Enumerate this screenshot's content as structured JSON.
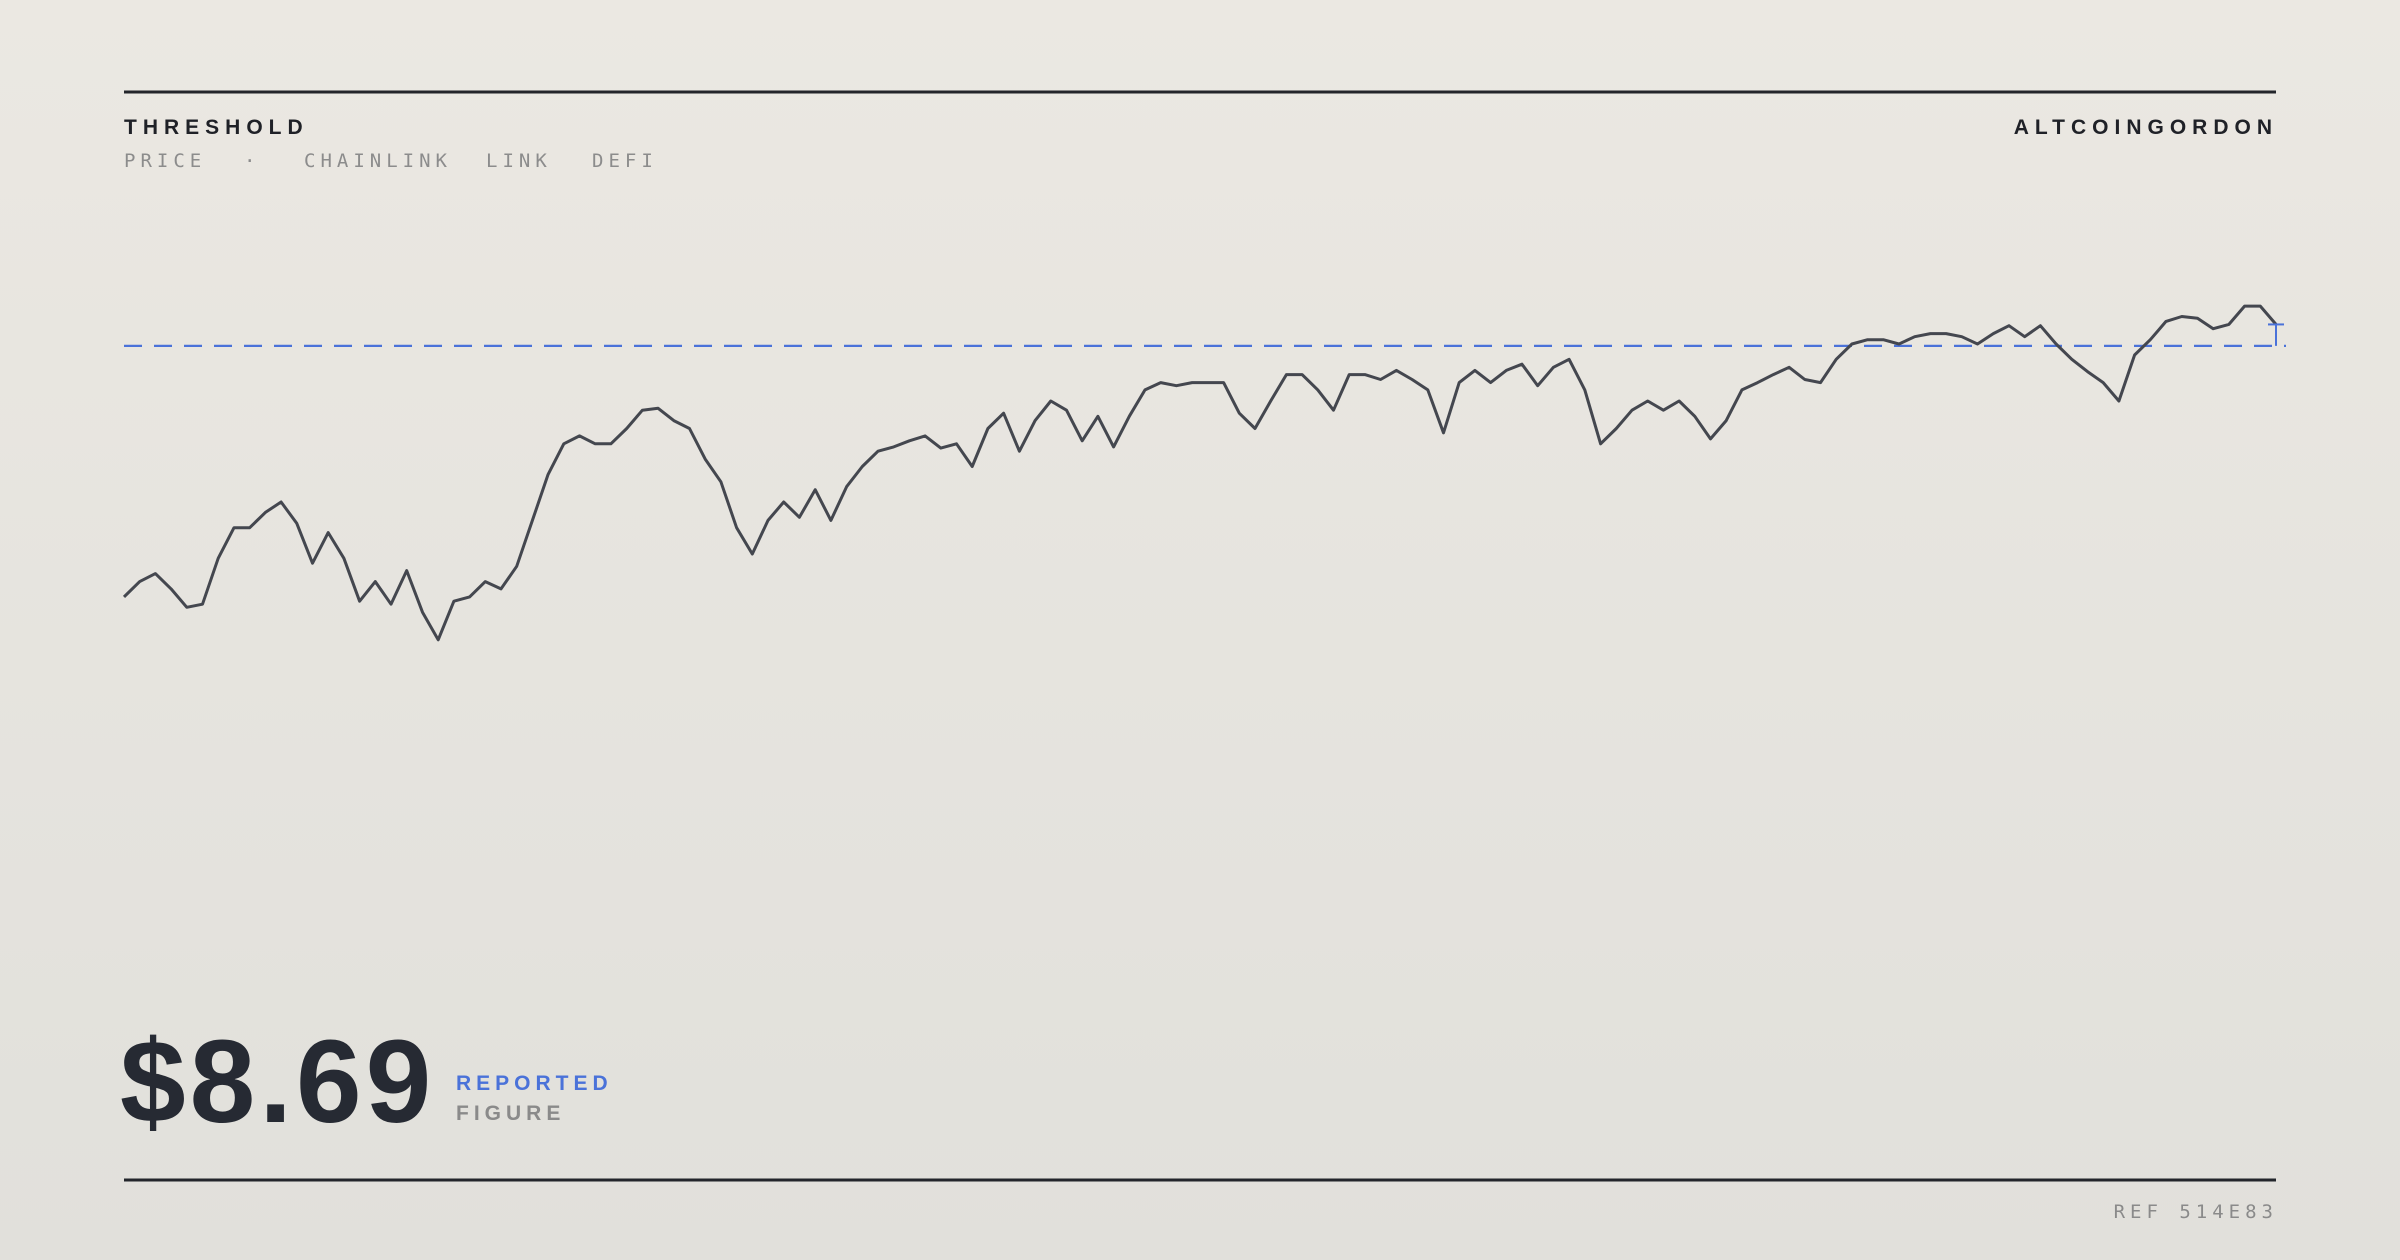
{
  "chart_data": {
    "type": "line",
    "title": "THRESHOLD",
    "subtitle": [
      "PRICE",
      "·",
      "CHAINLINK",
      "LINK",
      "DEFI"
    ],
    "source": "ALTCOINGORDON",
    "headline": {
      "value": 8.69,
      "label": "$8.69"
    },
    "headline_caption": [
      "REPORTED",
      "FIGURE"
    ],
    "reference": "REF 514E83",
    "color": "#44474f",
    "threshold": 8.34,
    "threshold_color": "#4a72d9",
    "ylim": [
      0,
      11
    ],
    "values": [
      4.24,
      4.49,
      4.62,
      4.37,
      4.07,
      4.12,
      4.87,
      5.37,
      5.37,
      5.62,
      5.79,
      5.44,
      4.79,
      5.29,
      4.87,
      4.17,
      4.49,
      4.12,
      4.67,
      3.99,
      3.54,
      4.17,
      4.24,
      4.49,
      4.37,
      4.74,
      5.49,
      6.24,
      6.74,
      6.87,
      6.74,
      6.74,
      6.99,
      7.29,
      7.32,
      7.12,
      6.99,
      6.49,
      6.12,
      5.37,
      4.94,
      5.49,
      5.79,
      5.54,
      5.99,
      5.49,
      6.04,
      6.37,
      6.62,
      6.69,
      6.79,
      6.87,
      6.67,
      6.74,
      6.37,
      6.99,
      7.24,
      6.62,
      7.12,
      7.44,
      7.29,
      6.79,
      7.19,
      6.69,
      7.19,
      7.62,
      7.74,
      7.69,
      7.74,
      7.74,
      7.74,
      7.24,
      6.99,
      7.44,
      7.87,
      7.87,
      7.62,
      7.29,
      7.87,
      7.87,
      7.79,
      7.94,
      7.79,
      7.62,
      6.92,
      7.74,
      7.94,
      7.74,
      7.94,
      8.04,
      7.69,
      7.99,
      8.12,
      7.62,
      6.74,
      6.99,
      7.29,
      7.44,
      7.29,
      7.44,
      7.19,
      6.82,
      7.12,
      7.62,
      7.74,
      7.87,
      7.99,
      7.79,
      7.74,
      8.12,
      8.37,
      8.44,
      8.44,
      8.37,
      8.49,
      8.54,
      8.54,
      8.49,
      8.37,
      8.54,
      8.67,
      8.49,
      8.67,
      8.37,
      8.12,
      7.92,
      7.74,
      7.44,
      8.19,
      8.44,
      8.74,
      8.82,
      8.79,
      8.62,
      8.69,
      8.99,
      8.99,
      8.69
    ]
  }
}
